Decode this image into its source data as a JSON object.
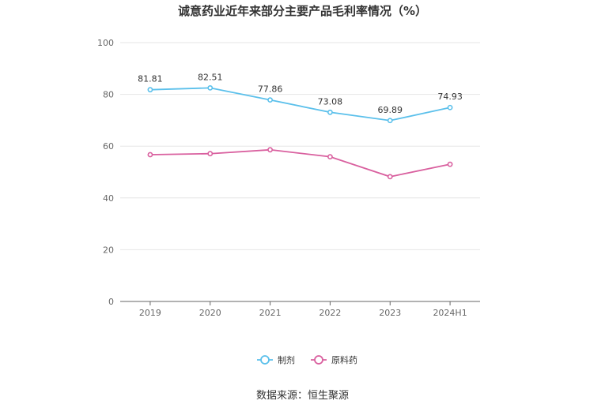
{
  "title": "诚意药业近年来部分主要产品毛利率情况（%）",
  "source": "数据来源：恒生聚源",
  "chart_data": {
    "type": "line",
    "title": "诚意药业近年来部分主要产品毛利率情况（%）",
    "categories": [
      "2019",
      "2020",
      "2021",
      "2022",
      "2023",
      "2024H1"
    ],
    "ylim": [
      0,
      100
    ],
    "yticks": [
      0,
      20,
      40,
      60,
      80,
      100
    ],
    "grid": true,
    "legend_position": "bottom-center",
    "series": [
      {
        "name": "制剂",
        "color": "#5bc0eb",
        "values": [
          81.81,
          82.51,
          77.86,
          73.08,
          69.89,
          74.93
        ],
        "labels": [
          "81.81",
          "82.51",
          "77.86",
          "73.08",
          "69.89",
          "74.93"
        ]
      },
      {
        "name": "原料药",
        "color": "#d9609f",
        "values": [
          56.7,
          57.1,
          58.6,
          55.9,
          48.2,
          53.0
        ],
        "labels": null
      }
    ]
  }
}
